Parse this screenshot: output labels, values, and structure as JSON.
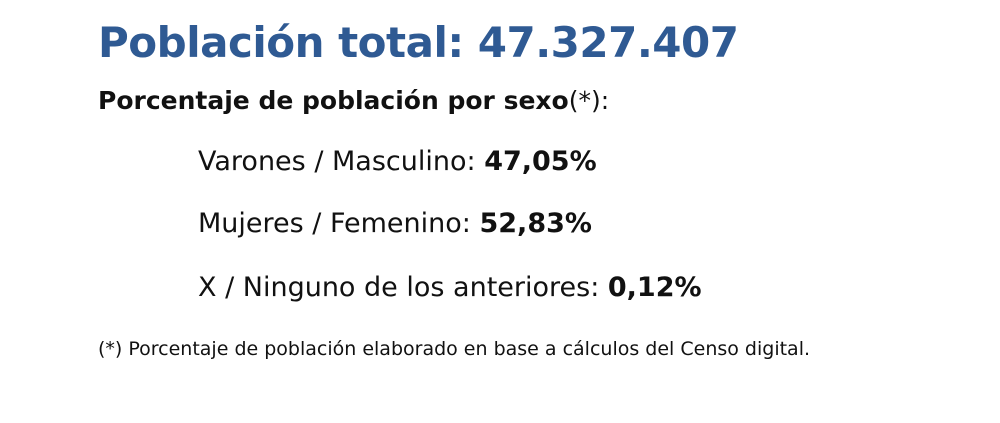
{
  "title": "Población total: 47.327.407",
  "subtitle": {
    "text": "Porcentaje de población por sexo",
    "suffix": "(*):"
  },
  "items": [
    {
      "label": "Varones / Masculino:",
      "value": "47,05%"
    },
    {
      "label": "Mujeres / Femenino:",
      "value": "52,83%"
    },
    {
      "label": "X / Ninguno de los anteriores:",
      "value": "0,12%"
    }
  ],
  "footnote": "(*) Porcentaje de población elaborado en base a cálculos del Censo digital."
}
